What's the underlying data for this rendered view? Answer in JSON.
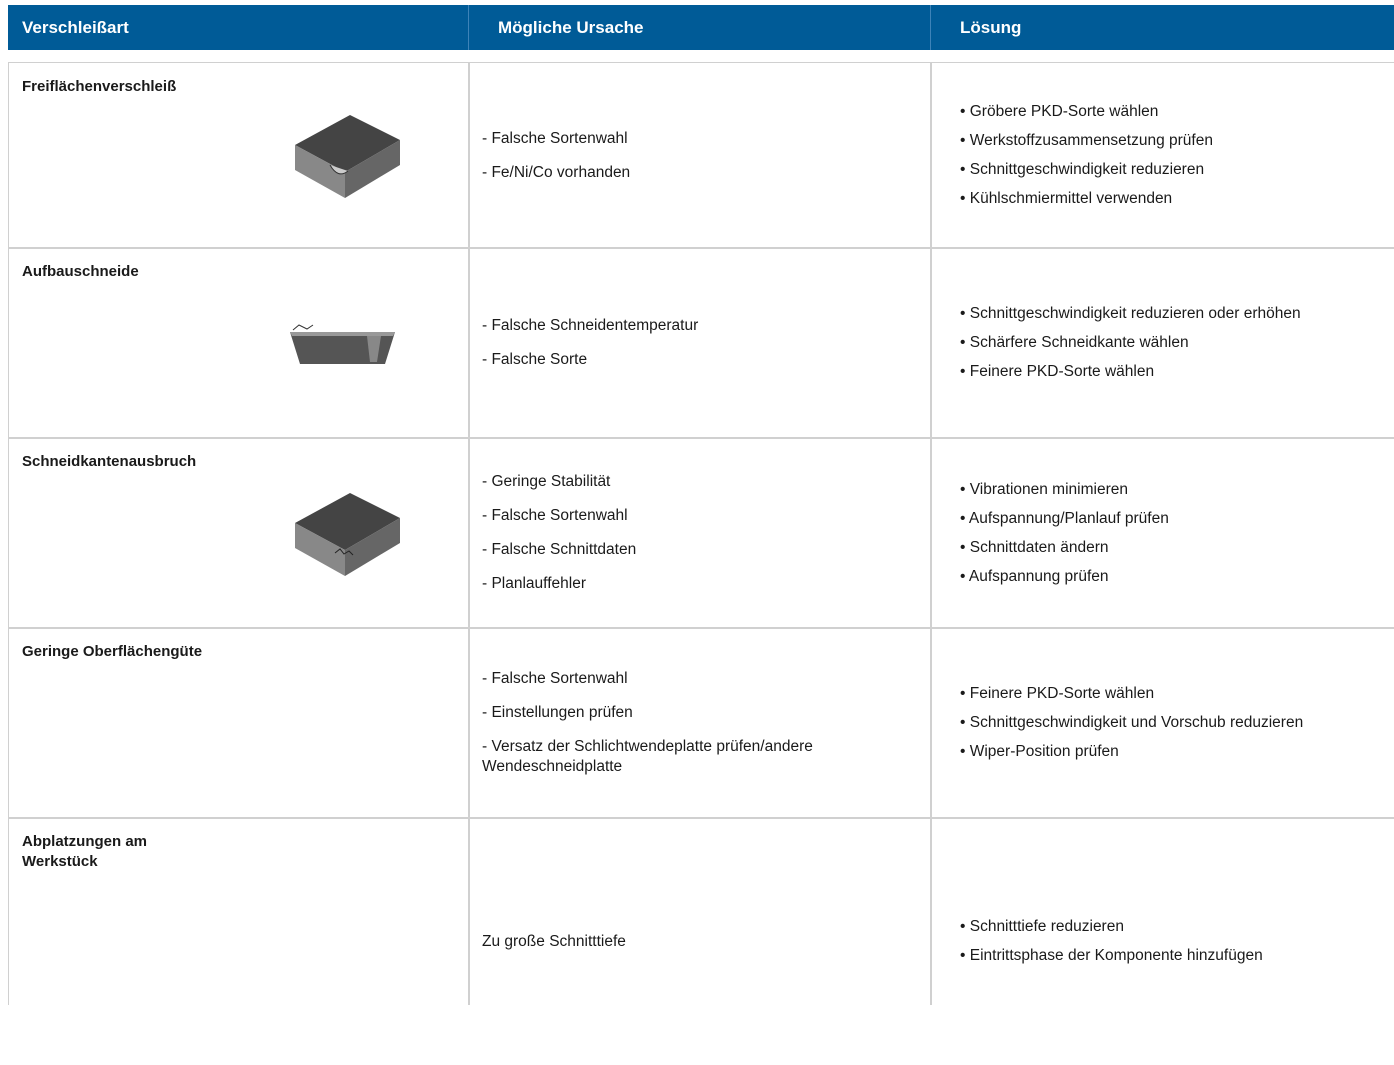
{
  "header": [
    "Verschleißart",
    "Mögliche Ursache",
    "Lösung"
  ],
  "rows": [
    {
      "label": "Freiflächenverschleiß",
      "causes": [
        "- Falsche Sortenwahl",
        "- Fe/Ni/Co vorhanden"
      ],
      "solutions": [
        "• Gröbere PKD-Sorte wählen",
        "• Werkstoffzusammensetzung prüfen",
        "• Schnittgeschwindigkeit reduzieren",
        "• Kühlschmiermittel verwenden"
      ]
    },
    {
      "label": "Aufbauschneide",
      "causes": [
        "- Falsche Schneidentemperatur",
        "- Falsche Sorte"
      ],
      "solutions": [
        "• Schnittgeschwindigkeit reduzieren oder erhöhen",
        "• Schärfere Schneidkante wählen",
        "• Feinere PKD-Sorte wählen"
      ]
    },
    {
      "label": "Schneidkantenausbruch",
      "causes": [
        "- Geringe Stabilität",
        "- Falsche Sortenwahl",
        "- Falsche Schnittdaten",
        "- Planlauffehler"
      ],
      "solutions": [
        "•  Vibrationen minimieren",
        "• Aufspannung/Planlauf prüfen",
        "• Schnittdaten ändern",
        "• Aufspannung prüfen"
      ]
    },
    {
      "label": "Geringe Oberflächengüte",
      "causes": [
        "- Falsche Sortenwahl",
        "- Einstellungen prüfen",
        "- Versatz der Schlichtwendeplatte prüfen/andere Wendeschneidplatte"
      ],
      "solutions": [
        "• Feinere PKD-Sorte wählen",
        "• Schnittgeschwindigkeit und Vorschub reduzieren",
        "• Wiper-Position prüfen"
      ]
    },
    {
      "label": "Abplatzungen am Werkstück",
      "causes": [
        "Zu große Schnitttiefe"
      ],
      "solutions": [
        "• Schnitttiefe reduzieren",
        "• Eintrittsphase der Komponente hinzufügen"
      ]
    }
  ]
}
